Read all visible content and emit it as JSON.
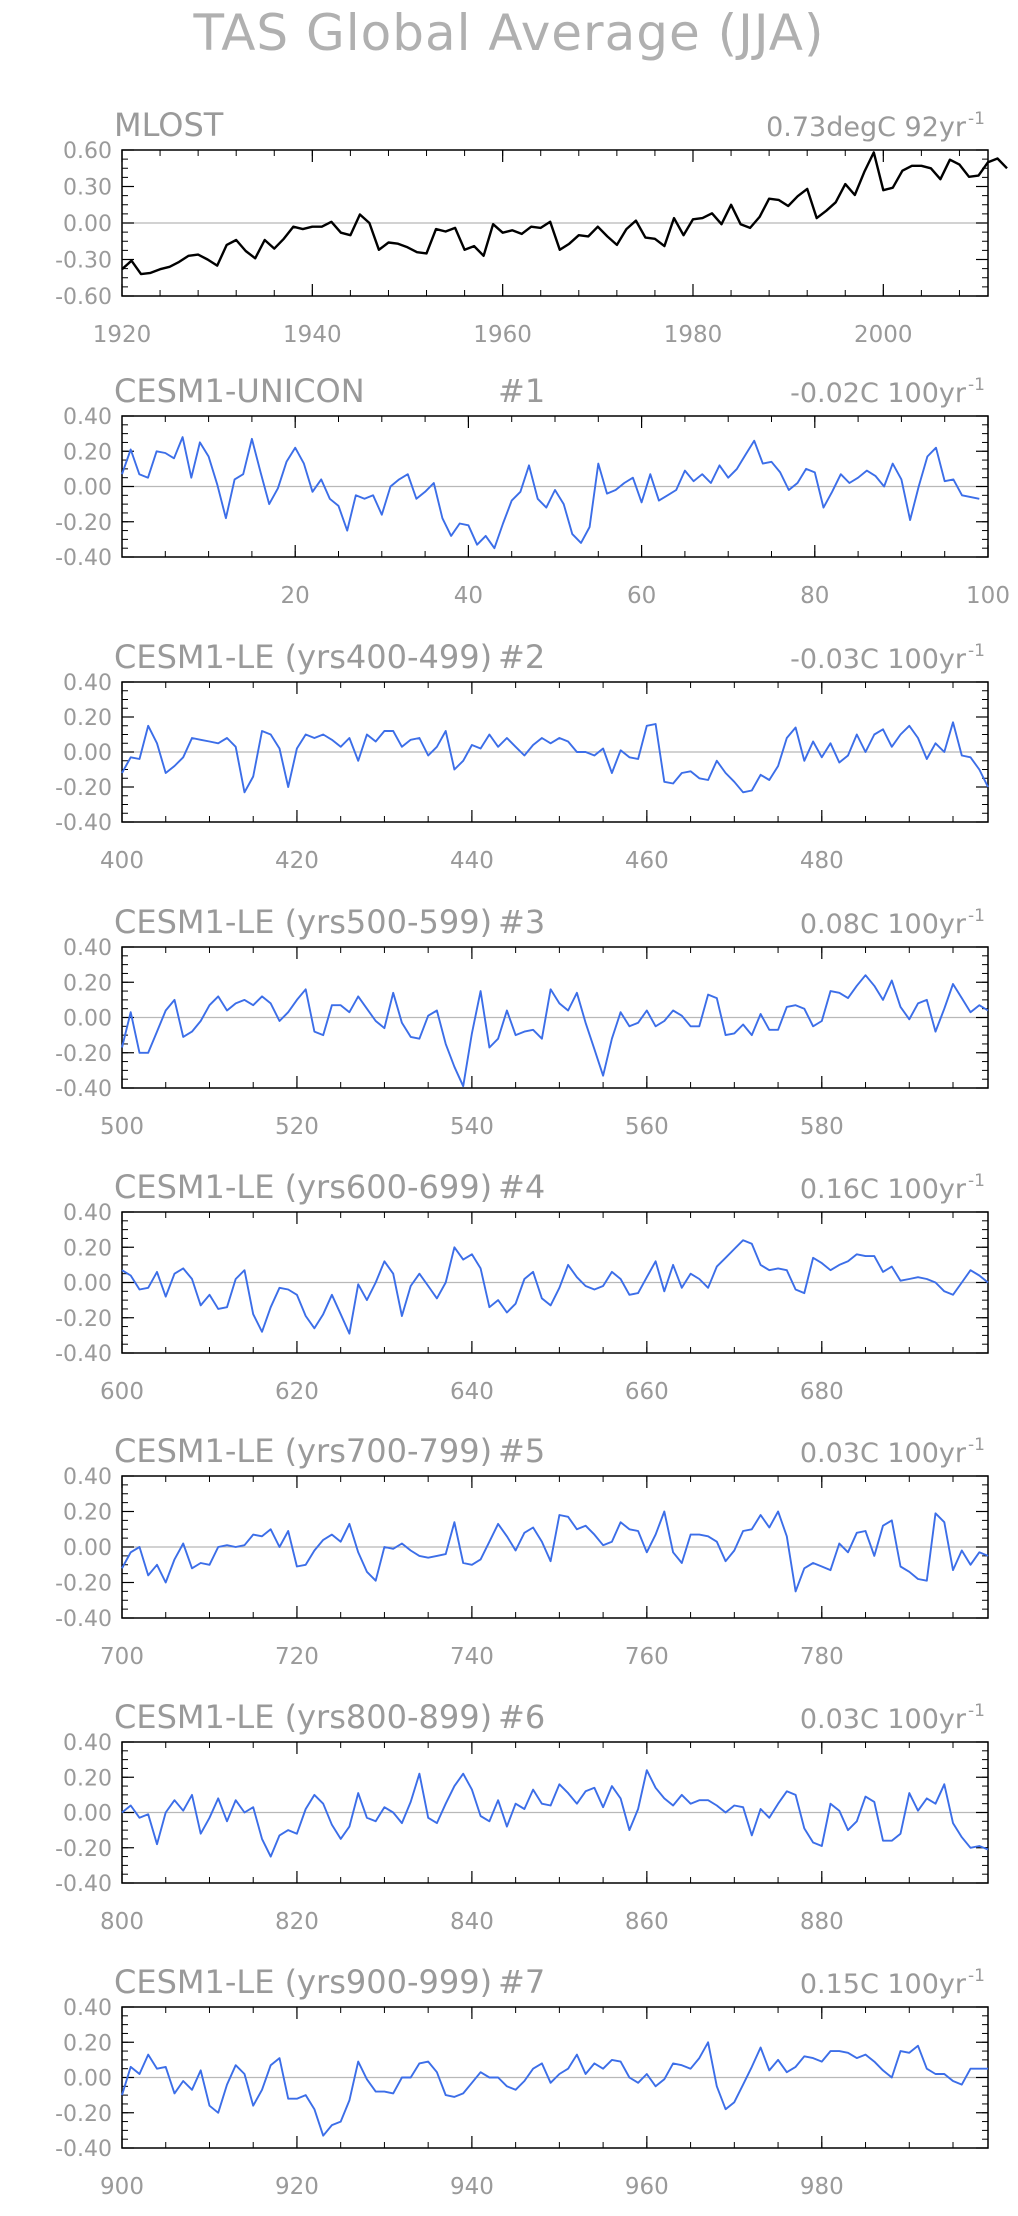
{
  "page_title": "TAS Global Average (JJA)",
  "chart_data": [
    {
      "type": "line",
      "left_label": "MLOST",
      "right_label": "0.73degC 92yr",
      "right_label_sup": "-1",
      "xlim": [
        1920,
        2011
      ],
      "ylim": [
        -0.6,
        0.6
      ],
      "xticks": [
        1920,
        1940,
        1960,
        1980,
        2000
      ],
      "yticks": [
        -0.6,
        -0.3,
        0.0,
        0.3,
        0.6
      ],
      "ytick_labels": [
        "-0.60",
        "-0.30",
        "0.00",
        "0.30",
        "0.60"
      ],
      "color": "#000000",
      "x_start": 1920,
      "values": [
        -0.38,
        -0.31,
        -0.42,
        -0.41,
        -0.38,
        -0.36,
        -0.32,
        -0.27,
        -0.26,
        -0.3,
        -0.35,
        -0.18,
        -0.14,
        -0.23,
        -0.29,
        -0.14,
        -0.21,
        -0.13,
        -0.03,
        -0.05,
        -0.03,
        -0.03,
        0.01,
        -0.08,
        -0.1,
        0.07,
        0.0,
        -0.22,
        -0.16,
        -0.17,
        -0.2,
        -0.24,
        -0.25,
        -0.05,
        -0.07,
        -0.04,
        -0.22,
        -0.19,
        -0.27,
        -0.01,
        -0.08,
        -0.06,
        -0.09,
        -0.03,
        -0.04,
        0.01,
        -0.22,
        -0.17,
        -0.1,
        -0.11,
        -0.03,
        -0.11,
        -0.18,
        -0.05,
        0.02,
        -0.12,
        -0.13,
        -0.19,
        0.04,
        -0.1,
        0.03,
        0.04,
        0.08,
        -0.01,
        0.15,
        -0.01,
        -0.04,
        0.05,
        0.2,
        0.19,
        0.14,
        0.22,
        0.28,
        0.04,
        0.1,
        0.17,
        0.32,
        0.23,
        0.42,
        0.58,
        0.27,
        0.29,
        0.43,
        0.47,
        0.47,
        0.45,
        0.36,
        0.52,
        0.48,
        0.38,
        0.39,
        0.5,
        0.53,
        0.45
      ]
    },
    {
      "type": "line",
      "left_label": "CESM1-UNICON",
      "run_label": "#1",
      "right_label": "-0.02C 100yr",
      "right_label_sup": "-1",
      "xlim": [
        0,
        100
      ],
      "ylim": [
        -0.4,
        0.4
      ],
      "xticks": [
        20,
        40,
        60,
        80,
        100
      ],
      "yticks": [
        -0.4,
        -0.2,
        0.0,
        0.2,
        0.4
      ],
      "ytick_labels": [
        "-0.40",
        "-0.20",
        "0.00",
        "0.20",
        "0.40"
      ],
      "color": "#3c6ee8",
      "x_start": 0,
      "values": [
        0.07,
        0.21,
        0.07,
        0.05,
        0.2,
        0.19,
        0.16,
        0.28,
        0.05,
        0.25,
        0.17,
        0.01,
        -0.18,
        0.04,
        0.07,
        0.27,
        0.08,
        -0.1,
        -0.01,
        0.14,
        0.22,
        0.13,
        -0.03,
        0.04,
        -0.07,
        -0.11,
        -0.25,
        -0.05,
        -0.07,
        -0.05,
        -0.16,
        0.0,
        0.04,
        0.07,
        -0.07,
        -0.03,
        0.02,
        -0.18,
        -0.28,
        -0.21,
        -0.22,
        -0.33,
        -0.28,
        -0.35,
        -0.21,
        -0.08,
        -0.03,
        0.12,
        -0.07,
        -0.12,
        -0.02,
        -0.1,
        -0.27,
        -0.32,
        -0.23,
        0.13,
        -0.04,
        -0.02,
        0.02,
        0.05,
        -0.09,
        0.07,
        -0.08,
        -0.05,
        -0.02,
        0.09,
        0.03,
        0.07,
        0.02,
        0.12,
        0.05,
        0.1,
        0.18,
        0.26,
        0.13,
        0.14,
        0.08,
        -0.02,
        0.02,
        0.1,
        0.08,
        -0.12,
        -0.03,
        0.07,
        0.02,
        0.05,
        0.09,
        0.06,
        0.0,
        0.13,
        0.04,
        -0.19,
        0.0,
        0.17,
        0.22,
        0.03,
        0.04,
        -0.05,
        -0.06,
        -0.07
      ]
    },
    {
      "type": "line",
      "left_label": "CESM1-LE (yrs400-499)",
      "run_label": "#2",
      "right_label": "-0.03C 100yr",
      "right_label_sup": "-1",
      "xlim": [
        400,
        499
      ],
      "ylim": [
        -0.4,
        0.4
      ],
      "xticks": [
        400,
        420,
        440,
        460,
        480
      ],
      "yticks": [
        -0.4,
        -0.2,
        0.0,
        0.2,
        0.4
      ],
      "ytick_labels": [
        "-0.40",
        "-0.20",
        "0.00",
        "0.20",
        "0.40"
      ],
      "color": "#3c6ee8",
      "x_start": 400,
      "values": [
        -0.12,
        -0.03,
        -0.04,
        0.15,
        0.05,
        -0.12,
        -0.08,
        -0.03,
        0.08,
        0.07,
        0.06,
        0.05,
        0.08,
        0.03,
        -0.23,
        -0.14,
        0.12,
        0.1,
        0.02,
        -0.2,
        0.02,
        0.1,
        0.08,
        0.1,
        0.07,
        0.03,
        0.08,
        -0.05,
        0.1,
        0.06,
        0.12,
        0.12,
        0.03,
        0.07,
        0.08,
        -0.02,
        0.03,
        0.12,
        -0.1,
        -0.05,
        0.04,
        0.02,
        0.1,
        0.03,
        0.08,
        0.03,
        -0.02,
        0.04,
        0.08,
        0.05,
        0.08,
        0.06,
        0.0,
        0.0,
        -0.02,
        0.02,
        -0.12,
        0.01,
        -0.03,
        -0.04,
        0.15,
        0.16,
        -0.17,
        -0.18,
        -0.12,
        -0.11,
        -0.15,
        -0.16,
        -0.05,
        -0.12,
        -0.17,
        -0.23,
        -0.22,
        -0.13,
        -0.16,
        -0.08,
        0.08,
        0.14,
        -0.05,
        0.06,
        -0.03,
        0.05,
        -0.06,
        -0.02,
        0.1,
        0.0,
        0.1,
        0.13,
        0.03,
        0.1,
        0.15,
        0.08,
        -0.04,
        0.05,
        0.0,
        0.17,
        -0.02,
        -0.03,
        -0.1,
        -0.2
      ]
    },
    {
      "type": "line",
      "left_label": "CESM1-LE (yrs500-599)",
      "run_label": "#3",
      "right_label": "0.08C 100yr",
      "right_label_sup": "-1",
      "xlim": [
        500,
        599
      ],
      "ylim": [
        -0.4,
        0.4
      ],
      "xticks": [
        500,
        520,
        540,
        560,
        580
      ],
      "yticks": [
        -0.4,
        -0.2,
        0.0,
        0.2,
        0.4
      ],
      "ytick_labels": [
        "-0.40",
        "-0.20",
        "0.00",
        "0.20",
        "0.40"
      ],
      "color": "#3c6ee8",
      "x_start": 500,
      "values": [
        -0.17,
        0.03,
        -0.2,
        -0.2,
        -0.08,
        0.04,
        0.1,
        -0.11,
        -0.08,
        -0.02,
        0.07,
        0.12,
        0.04,
        0.08,
        0.1,
        0.07,
        0.12,
        0.08,
        -0.02,
        0.03,
        0.1,
        0.16,
        -0.08,
        -0.1,
        0.07,
        0.07,
        0.03,
        0.12,
        0.05,
        -0.02,
        -0.06,
        0.14,
        -0.03,
        -0.11,
        -0.12,
        0.01,
        0.04,
        -0.15,
        -0.28,
        -0.39,
        -0.09,
        0.15,
        -0.17,
        -0.12,
        0.04,
        -0.1,
        -0.08,
        -0.07,
        -0.12,
        0.16,
        0.08,
        0.04,
        0.14,
        -0.03,
        -0.18,
        -0.33,
        -0.12,
        0.03,
        -0.05,
        -0.03,
        0.04,
        -0.05,
        -0.02,
        0.04,
        0.01,
        -0.05,
        -0.05,
        0.13,
        0.11,
        -0.1,
        -0.09,
        -0.04,
        -0.1,
        0.02,
        -0.07,
        -0.07,
        0.06,
        0.07,
        0.05,
        -0.05,
        -0.02,
        0.15,
        0.14,
        0.11,
        0.18,
        0.24,
        0.18,
        0.1,
        0.21,
        0.06,
        -0.01,
        0.08,
        0.1,
        -0.08,
        0.05,
        0.19,
        0.11,
        0.03,
        0.07,
        0.04
      ]
    },
    {
      "type": "line",
      "left_label": "CESM1-LE (yrs600-699)",
      "run_label": "#4",
      "right_label": "0.16C 100yr",
      "right_label_sup": "-1",
      "xlim": [
        600,
        699
      ],
      "ylim": [
        -0.4,
        0.4
      ],
      "xticks": [
        600,
        620,
        640,
        660,
        680
      ],
      "yticks": [
        -0.4,
        -0.2,
        0.0,
        0.2,
        0.4
      ],
      "ytick_labels": [
        "-0.40",
        "-0.20",
        "0.00",
        "0.20",
        "0.40"
      ],
      "color": "#3c6ee8",
      "x_start": 600,
      "values": [
        0.07,
        0.04,
        -0.04,
        -0.03,
        0.06,
        -0.08,
        0.05,
        0.08,
        0.02,
        -0.13,
        -0.07,
        -0.15,
        -0.14,
        0.02,
        0.07,
        -0.18,
        -0.28,
        -0.14,
        -0.03,
        -0.04,
        -0.07,
        -0.19,
        -0.26,
        -0.18,
        -0.07,
        -0.18,
        -0.29,
        -0.01,
        -0.1,
        0.0,
        0.12,
        0.05,
        -0.19,
        -0.02,
        0.05,
        -0.02,
        -0.09,
        0.0,
        0.2,
        0.13,
        0.16,
        0.08,
        -0.14,
        -0.1,
        -0.17,
        -0.12,
        0.02,
        0.06,
        -0.09,
        -0.13,
        -0.03,
        0.1,
        0.03,
        -0.02,
        -0.04,
        -0.02,
        0.06,
        0.02,
        -0.07,
        -0.06,
        0.03,
        0.12,
        -0.05,
        0.1,
        -0.03,
        0.05,
        0.02,
        -0.03,
        0.09,
        0.14,
        0.19,
        0.24,
        0.22,
        0.1,
        0.07,
        0.08,
        0.07,
        -0.04,
        -0.06,
        0.14,
        0.11,
        0.07,
        0.1,
        0.12,
        0.16,
        0.15,
        0.15,
        0.06,
        0.09,
        0.01,
        0.02,
        0.03,
        0.02,
        0.0,
        -0.05,
        -0.07,
        0.0,
        0.07,
        0.04,
        0.0
      ]
    },
    {
      "type": "line",
      "left_label": "CESM1-LE (yrs700-799)",
      "run_label": "#5",
      "right_label": "0.03C 100yr",
      "right_label_sup": "-1",
      "xlim": [
        700,
        799
      ],
      "ylim": [
        -0.4,
        0.4
      ],
      "xticks": [
        700,
        720,
        740,
        760,
        780
      ],
      "yticks": [
        -0.4,
        -0.2,
        0.0,
        0.2,
        0.4
      ],
      "ytick_labels": [
        "-0.40",
        "-0.20",
        "0.00",
        "0.20",
        "0.40"
      ],
      "color": "#3c6ee8",
      "x_start": 700,
      "values": [
        -0.12,
        -0.03,
        0.0,
        -0.16,
        -0.1,
        -0.2,
        -0.07,
        0.02,
        -0.12,
        -0.09,
        -0.1,
        0.0,
        0.01,
        0.0,
        0.01,
        0.07,
        0.06,
        0.1,
        0.0,
        0.09,
        -0.11,
        -0.1,
        -0.02,
        0.04,
        0.07,
        0.03,
        0.13,
        -0.03,
        -0.14,
        -0.19,
        0.0,
        -0.01,
        0.02,
        -0.02,
        -0.05,
        -0.06,
        -0.05,
        -0.04,
        0.14,
        -0.09,
        -0.1,
        -0.07,
        0.03,
        0.13,
        0.06,
        -0.02,
        0.08,
        0.11,
        0.03,
        -0.08,
        0.18,
        0.17,
        0.1,
        0.12,
        0.07,
        0.01,
        0.03,
        0.14,
        0.1,
        0.09,
        -0.03,
        0.07,
        0.2,
        -0.03,
        -0.09,
        0.07,
        0.07,
        0.06,
        0.03,
        -0.08,
        -0.02,
        0.09,
        0.1,
        0.18,
        0.11,
        0.2,
        0.06,
        -0.25,
        -0.12,
        -0.09,
        -0.11,
        -0.13,
        0.02,
        -0.03,
        0.08,
        0.09,
        -0.05,
        0.12,
        0.15,
        -0.11,
        -0.14,
        -0.18,
        -0.19,
        0.19,
        0.14,
        -0.13,
        -0.02,
        -0.1,
        -0.03,
        -0.05
      ]
    },
    {
      "type": "line",
      "left_label": "CESM1-LE (yrs800-899)",
      "run_label": "#6",
      "right_label": "0.03C 100yr",
      "right_label_sup": "-1",
      "xlim": [
        800,
        899
      ],
      "ylim": [
        -0.4,
        0.4
      ],
      "xticks": [
        800,
        820,
        840,
        860,
        880
      ],
      "yticks": [
        -0.4,
        -0.2,
        0.0,
        0.2,
        0.4
      ],
      "ytick_labels": [
        "-0.40",
        "-0.20",
        "0.00",
        "0.20",
        "0.40"
      ],
      "color": "#3c6ee8",
      "x_start": 800,
      "values": [
        0.0,
        0.04,
        -0.03,
        -0.01,
        -0.18,
        0.0,
        0.07,
        0.01,
        0.1,
        -0.12,
        -0.03,
        0.08,
        -0.05,
        0.07,
        0.0,
        0.03,
        -0.15,
        -0.25,
        -0.13,
        -0.1,
        -0.12,
        0.02,
        0.1,
        0.05,
        -0.07,
        -0.15,
        -0.08,
        0.11,
        -0.03,
        -0.05,
        0.03,
        0.0,
        -0.06,
        0.06,
        0.22,
        -0.03,
        -0.06,
        0.05,
        0.15,
        0.22,
        0.13,
        -0.02,
        -0.05,
        0.07,
        -0.08,
        0.05,
        0.02,
        0.13,
        0.05,
        0.04,
        0.16,
        0.11,
        0.05,
        0.12,
        0.14,
        0.03,
        0.15,
        0.08,
        -0.1,
        0.02,
        0.24,
        0.14,
        0.08,
        0.04,
        0.1,
        0.05,
        0.07,
        0.07,
        0.04,
        0.0,
        0.04,
        0.03,
        -0.13,
        0.02,
        -0.03,
        0.05,
        0.12,
        0.1,
        -0.09,
        -0.17,
        -0.19,
        0.05,
        0.01,
        -0.1,
        -0.05,
        0.09,
        0.06,
        -0.16,
        -0.16,
        -0.12,
        0.11,
        0.01,
        0.08,
        0.05,
        0.16,
        -0.06,
        -0.14,
        -0.2,
        -0.19,
        -0.21
      ]
    },
    {
      "type": "line",
      "left_label": "CESM1-LE (yrs900-999)",
      "run_label": "#7",
      "right_label": "0.15C 100yr",
      "right_label_sup": "-1",
      "xlim": [
        900,
        999
      ],
      "ylim": [
        -0.4,
        0.4
      ],
      "xticks": [
        900,
        920,
        940,
        960,
        980
      ],
      "yticks": [
        -0.4,
        -0.2,
        0.0,
        0.2,
        0.4
      ],
      "ytick_labels": [
        "-0.40",
        "-0.20",
        "0.00",
        "0.20",
        "0.40"
      ],
      "color": "#3c6ee8",
      "x_start": 900,
      "values": [
        -0.1,
        0.06,
        0.02,
        0.13,
        0.05,
        0.06,
        -0.09,
        -0.02,
        -0.07,
        0.04,
        -0.16,
        -0.2,
        -0.04,
        0.07,
        0.02,
        -0.16,
        -0.07,
        0.07,
        0.11,
        -0.12,
        -0.12,
        -0.1,
        -0.18,
        -0.33,
        -0.27,
        -0.25,
        -0.13,
        0.09,
        -0.01,
        -0.08,
        -0.08,
        -0.09,
        0.0,
        0.0,
        0.08,
        0.09,
        0.03,
        -0.1,
        -0.11,
        -0.09,
        -0.03,
        0.03,
        0.0,
        0.0,
        -0.05,
        -0.07,
        -0.02,
        0.05,
        0.08,
        -0.03,
        0.02,
        0.05,
        0.13,
        0.02,
        0.08,
        0.05,
        0.1,
        0.09,
        0.0,
        -0.03,
        0.02,
        -0.05,
        -0.01,
        0.08,
        0.07,
        0.05,
        0.11,
        0.2,
        -0.05,
        -0.18,
        -0.14,
        -0.04,
        0.06,
        0.17,
        0.04,
        0.1,
        0.03,
        0.06,
        0.12,
        0.11,
        0.09,
        0.15,
        0.15,
        0.14,
        0.11,
        0.13,
        0.09,
        0.04,
        0.0,
        0.15,
        0.14,
        0.18,
        0.05,
        0.02,
        0.02,
        -0.02,
        -0.04,
        0.05,
        0.05,
        0.05
      ]
    }
  ]
}
